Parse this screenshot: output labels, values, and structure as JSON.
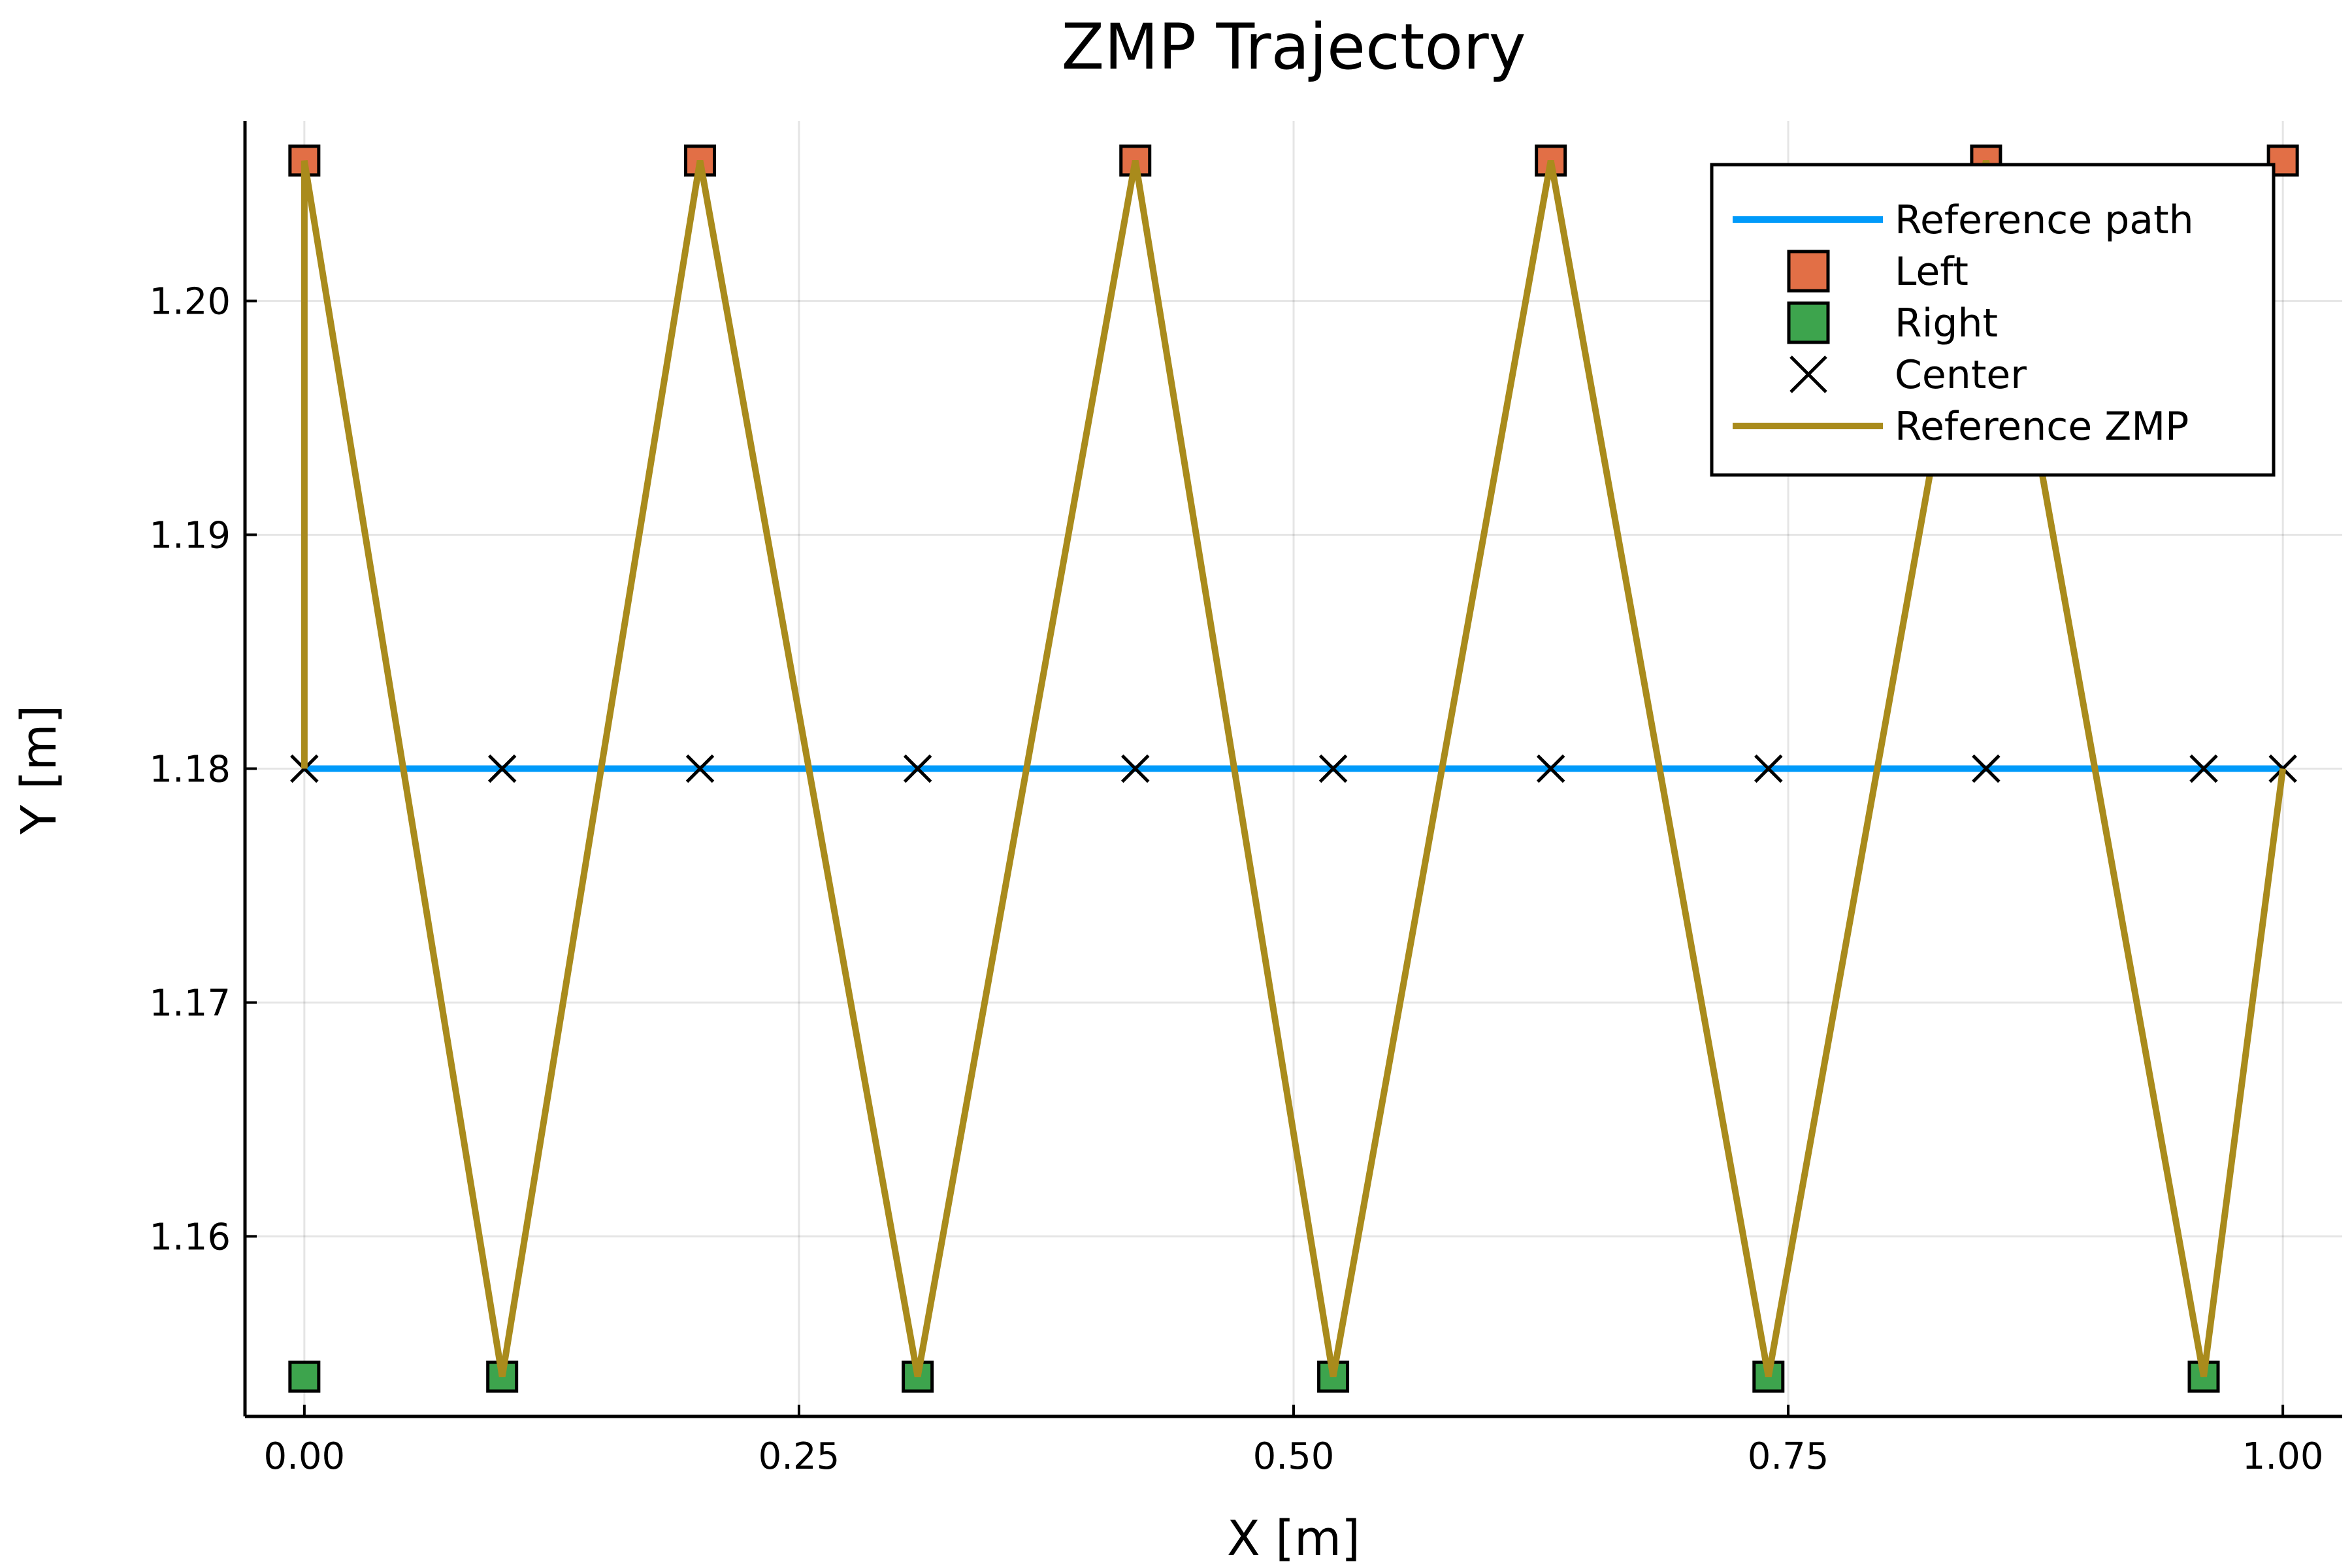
{
  "chart_data": {
    "type": "line",
    "title": "ZMP Trajectory",
    "xlabel": "X [m]",
    "ylabel": "Y [m]",
    "xlim": [
      -0.03,
      1.03
    ],
    "ylim": [
      1.1523,
      1.2077
    ],
    "xticks": [
      0.0,
      0.25,
      0.5,
      0.75,
      1.0
    ],
    "xtick_labels": [
      "0.00",
      "0.25",
      "0.50",
      "0.75",
      "1.00"
    ],
    "yticks": [
      1.16,
      1.17,
      1.18,
      1.19,
      1.2
    ],
    "ytick_labels": [
      "1.16",
      "1.17",
      "1.18",
      "1.19",
      "1.20"
    ],
    "grid": true,
    "legend_position": "top-right",
    "series": [
      {
        "name": "Reference path",
        "kind": "line",
        "color": "#009AFA",
        "x": [
          0.0,
          1.0
        ],
        "y": [
          1.18,
          1.18
        ]
      },
      {
        "name": "Left",
        "kind": "scatter",
        "marker": "square",
        "color": "#E26F46",
        "x": [
          0.0,
          0.2,
          0.42,
          0.63,
          0.85,
          1.0
        ],
        "y": [
          1.206,
          1.206,
          1.206,
          1.206,
          1.206,
          1.206
        ]
      },
      {
        "name": "Right",
        "kind": "scatter",
        "marker": "square",
        "color": "#3DA44D",
        "x": [
          0.0,
          0.1,
          0.31,
          0.52,
          0.74,
          0.96
        ],
        "y": [
          1.154,
          1.154,
          1.154,
          1.154,
          1.154,
          1.154
        ]
      },
      {
        "name": "Center",
        "kind": "scatter",
        "marker": "x",
        "color": "#000000",
        "x": [
          0.0,
          0.1,
          0.2,
          0.31,
          0.42,
          0.52,
          0.63,
          0.74,
          0.85,
          0.96,
          1.0
        ],
        "y": [
          1.18,
          1.18,
          1.18,
          1.18,
          1.18,
          1.18,
          1.18,
          1.18,
          1.18,
          1.18,
          1.18
        ]
      },
      {
        "name": "Reference ZMP",
        "kind": "line",
        "color": "#A98B1C",
        "x": [
          0.0,
          0.0,
          0.1,
          0.2,
          0.31,
          0.42,
          0.52,
          0.63,
          0.74,
          0.85,
          0.96,
          1.0
        ],
        "y": [
          1.18,
          1.206,
          1.154,
          1.206,
          1.154,
          1.206,
          1.154,
          1.206,
          1.154,
          1.206,
          1.154,
          1.18
        ]
      }
    ]
  }
}
